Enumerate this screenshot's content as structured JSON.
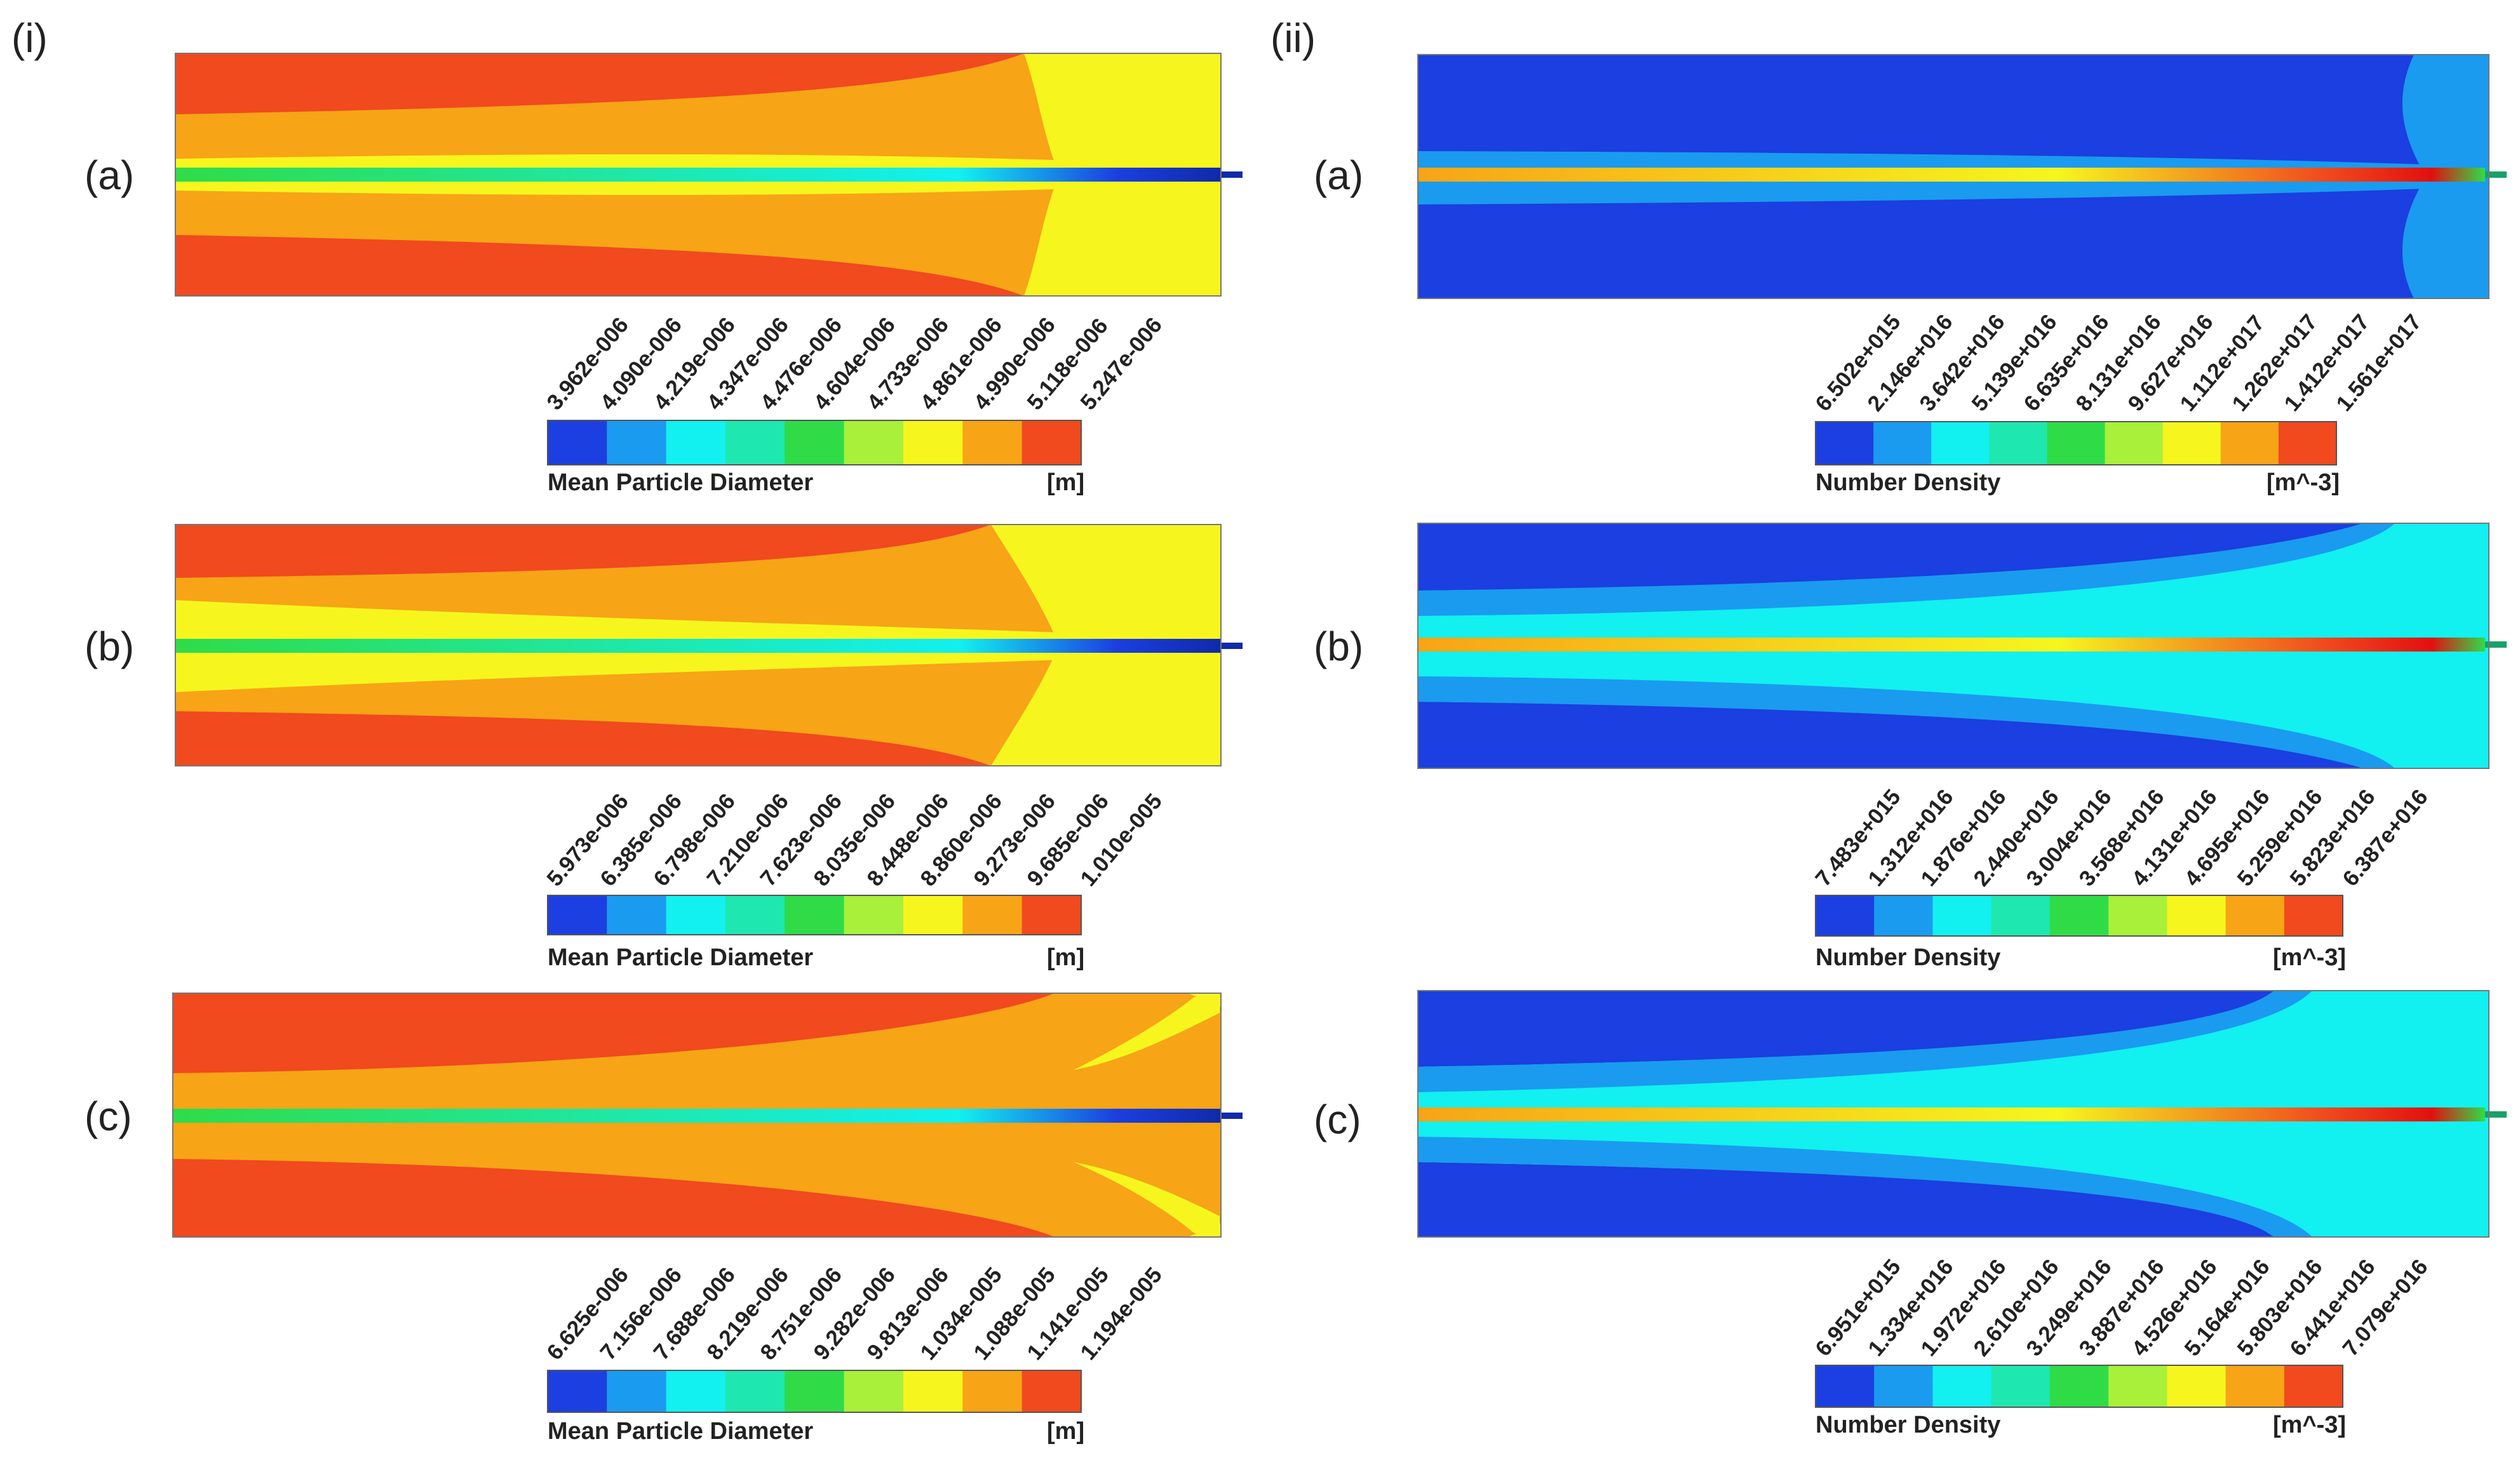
{
  "figure": {
    "columns": [
      {
        "label": "(i)",
        "quantity": "Mean Particle Diameter",
        "units": "[m]",
        "panels": [
          {
            "label": "(a)",
            "colorbar_ticks": [
              "3.962e-006",
              "4.090e-006",
              "4.219e-006",
              "4.347e-006",
              "4.476e-006",
              "4.604e-006",
              "4.733e-006",
              "4.861e-006",
              "4.990e-006",
              "5.118e-006",
              "5.247e-006"
            ]
          },
          {
            "label": "(b)",
            "colorbar_ticks": [
              "5.973e-006",
              "6.385e-006",
              "6.798e-006",
              "7.210e-006",
              "7.623e-006",
              "8.035e-006",
              "8.448e-006",
              "8.860e-006",
              "9.273e-006",
              "9.685e-006",
              "1.010e-005"
            ]
          },
          {
            "label": "(c)",
            "colorbar_ticks": [
              "6.625e-006",
              "7.156e-006",
              "7.688e-006",
              "8.219e-006",
              "8.751e-006",
              "9.282e-006",
              "9.813e-006",
              "1.034e-005",
              "1.088e-005",
              "1.141e-005",
              "1.194e-005"
            ]
          }
        ]
      },
      {
        "label": "(ii)",
        "quantity": "Number Density",
        "units": "[m^-3]",
        "panels": [
          {
            "label": "(a)",
            "colorbar_ticks": [
              "6.502e+015",
              "2.146e+016",
              "3.642e+016",
              "5.139e+016",
              "6.635e+016",
              "8.131e+016",
              "9.627e+016",
              "1.112e+017",
              "1.262e+017",
              "1.412e+017",
              "1.561e+017"
            ]
          },
          {
            "label": "(b)",
            "colorbar_ticks": [
              "7.483e+015",
              "1.312e+016",
              "1.876e+016",
              "2.440e+016",
              "3.004e+016",
              "3.568e+016",
              "4.131e+016",
              "4.695e+016",
              "5.259e+016",
              "5.823e+016",
              "6.387e+016"
            ]
          },
          {
            "label": "(c)",
            "colorbar_ticks": [
              "6.951e+015",
              "1.334e+016",
              "1.972e+016",
              "2.610e+016",
              "3.249e+016",
              "3.887e+016",
              "4.526e+016",
              "5.164e+016",
              "5.803e+016",
              "6.441e+016",
              "7.079e+016"
            ]
          }
        ]
      }
    ],
    "colormap": [
      "#1b3fe0",
      "#1a9bef",
      "#12f0f0",
      "#1ee8b0",
      "#2fdc48",
      "#a8f03a",
      "#f6f61e",
      "#f7a417",
      "#f04a1e"
    ]
  }
}
